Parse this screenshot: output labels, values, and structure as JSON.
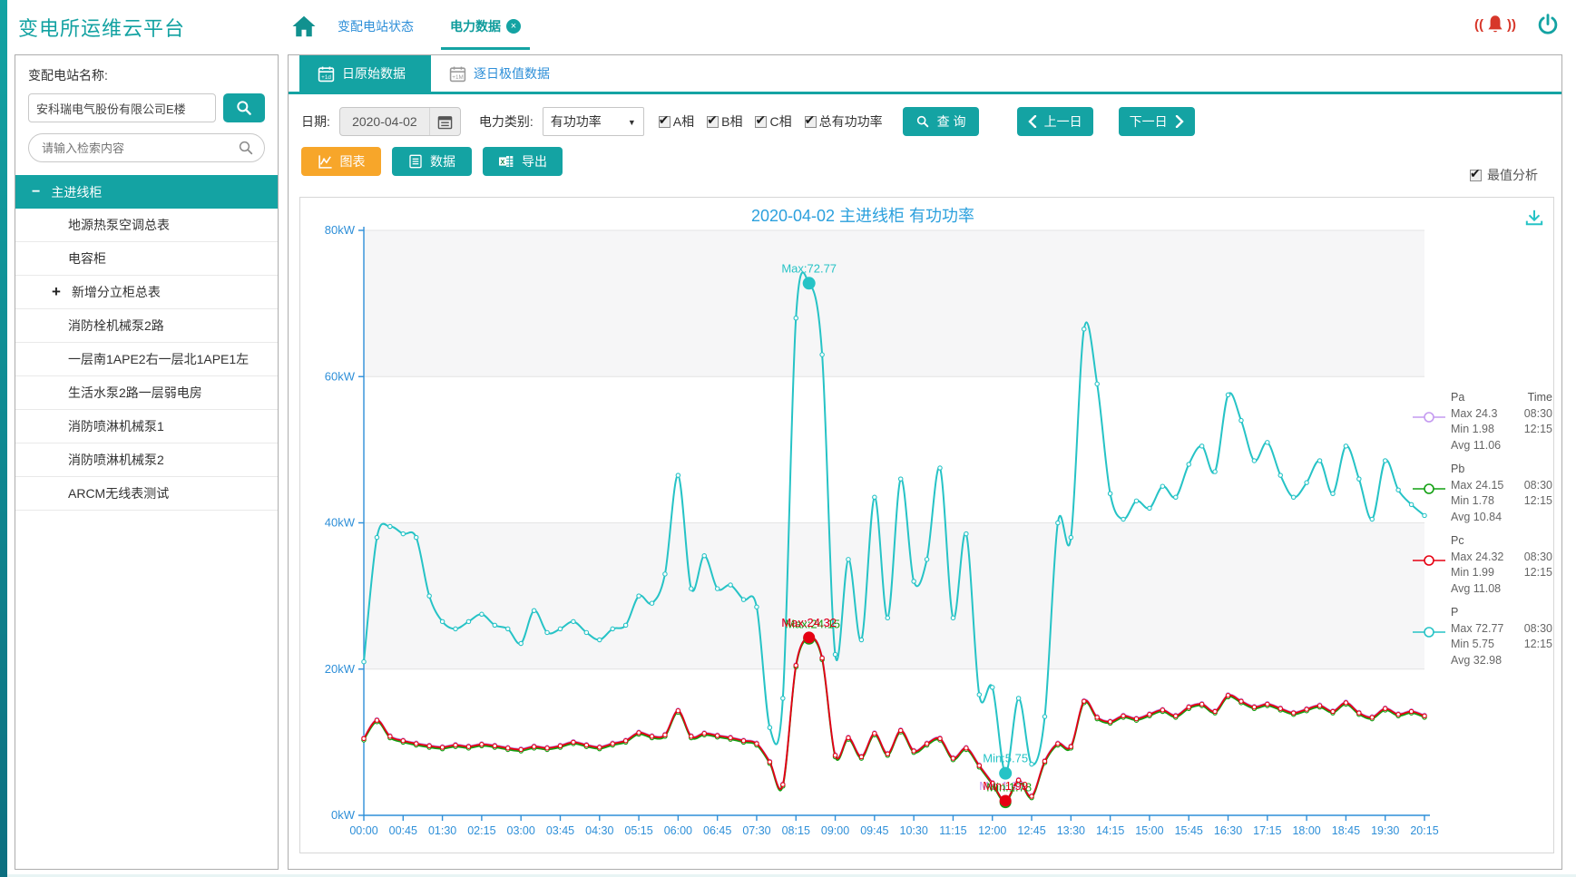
{
  "app": {
    "title": "变电所运维云平台"
  },
  "header": {
    "nav_station_status": "变配电站状态",
    "nav_power_data": "电力数据",
    "close_glyph": "×"
  },
  "sidebar": {
    "station_label": "变配电站名称:",
    "station_value": "安科瑞电气股份有限公司E楼",
    "search_placeholder": "请输入检索内容",
    "tree": [
      {
        "label": "主进线柜",
        "type": "root",
        "toggle": "−"
      },
      {
        "label": "地源热泵空调总表",
        "type": "leaf"
      },
      {
        "label": "电容柜",
        "type": "leaf"
      },
      {
        "label": "新增分立柜总表",
        "type": "expandable",
        "toggle": "+"
      },
      {
        "label": "消防栓机械泵2路",
        "type": "leaf"
      },
      {
        "label": "一层南1APE2右一层北1APE1左",
        "type": "leaf"
      },
      {
        "label": "生活水泵2路一层弱电房",
        "type": "leaf"
      },
      {
        "label": "消防喷淋机械泵1",
        "type": "leaf"
      },
      {
        "label": "消防喷淋机械泵2",
        "type": "leaf"
      },
      {
        "label": "ARCM无线表测试",
        "type": "leaf"
      }
    ]
  },
  "tabs": {
    "daily_raw": "日原始数据",
    "daily_extreme": "逐日极值数据",
    "icon_1d": "+1d",
    "icon_1m": "+1M"
  },
  "filters": {
    "date_label": "日期:",
    "date_value": "2020-04-02",
    "type_label": "电力类别:",
    "type_value": "有功功率",
    "checkboxes": [
      {
        "label": "A相",
        "checked": true
      },
      {
        "label": "B相",
        "checked": true
      },
      {
        "label": "C相",
        "checked": true
      },
      {
        "label": "总有功功率",
        "checked": true
      }
    ],
    "query_label": "查 询",
    "prev_label": "上一日",
    "next_label": "下一日"
  },
  "actions": {
    "chart_label": "图表",
    "data_label": "数据",
    "export_label": "导出",
    "peak_label": "最值分析",
    "peak_checked": true
  },
  "chart_data": {
    "type": "line",
    "title": "2020-04-02  主进线柜  有功功率",
    "ylim": [
      0,
      80
    ],
    "yticks": [
      0,
      20,
      40,
      60,
      80
    ],
    "ytick_labels": [
      "0kW",
      "20kW",
      "40kW",
      "60kW",
      "80kW"
    ],
    "grid": true,
    "split_bands": [
      [
        60,
        80
      ],
      [
        20,
        40
      ]
    ],
    "legend_position": "right",
    "legend_time_header": "Time",
    "xtick_every": 3,
    "x": [
      "00:00",
      "00:15",
      "00:30",
      "00:45",
      "01:00",
      "01:15",
      "01:30",
      "01:45",
      "02:00",
      "02:15",
      "02:30",
      "02:45",
      "03:00",
      "03:15",
      "03:30",
      "03:45",
      "04:00",
      "04:15",
      "04:30",
      "04:45",
      "05:00",
      "05:15",
      "05:30",
      "05:45",
      "06:00",
      "06:15",
      "06:30",
      "06:45",
      "07:00",
      "07:15",
      "07:30",
      "07:45",
      "08:00",
      "08:15",
      "08:30",
      "08:45",
      "09:00",
      "09:15",
      "09:30",
      "09:45",
      "10:00",
      "10:15",
      "10:30",
      "10:45",
      "11:00",
      "11:15",
      "11:30",
      "11:45",
      "12:00",
      "12:15",
      "12:30",
      "12:45",
      "13:00",
      "13:15",
      "13:30",
      "13:45",
      "14:00",
      "14:15",
      "14:30",
      "14:45",
      "15:00",
      "15:15",
      "15:30",
      "15:45",
      "16:00",
      "16:15",
      "16:30",
      "16:45",
      "17:00",
      "17:15",
      "17:30",
      "17:45",
      "18:00",
      "18:15",
      "18:30",
      "18:45",
      "19:00",
      "19:15",
      "19:30",
      "19:45",
      "20:00",
      "20:15"
    ],
    "series": [
      {
        "name": "Pa",
        "color": "#c49af0",
        "max": 24.3,
        "max_time": "08:30",
        "min": 1.98,
        "min_time": "12:15",
        "avg": 11.06,
        "max_label": "Max:24.3",
        "min_label": "Min:1.98",
        "max_idx": 34,
        "min_idx": 49,
        "values": [
          10.6,
          13.1,
          10.9,
          10.3,
          9.9,
          9.6,
          9.4,
          9.7,
          9.5,
          9.8,
          9.6,
          9.3,
          9.1,
          9.5,
          9.3,
          9.6,
          10.1,
          9.7,
          9.4,
          9.9,
          10.3,
          11.4,
          10.9,
          11.1,
          14.4,
          10.9,
          11.3,
          11.0,
          10.7,
          10.3,
          9.9,
          7.4,
          4.3,
          20.6,
          24.3,
          21.6,
          8.3,
          10.7,
          8.1,
          11.3,
          8.5,
          11.7,
          8.9,
          9.9,
          10.6,
          7.9,
          9.3,
          6.9,
          4.5,
          1.98,
          4.9,
          2.7,
          7.5,
          9.9,
          9.5,
          15.7,
          13.5,
          12.9,
          13.7,
          13.3,
          13.9,
          14.5,
          13.7,
          14.9,
          15.3,
          14.3,
          16.5,
          15.7,
          14.9,
          15.3,
          14.7,
          14.1,
          14.6,
          15.1,
          14.3,
          15.5,
          14.1,
          13.5,
          14.7,
          13.9,
          14.3,
          13.7
        ]
      },
      {
        "name": "Pb",
        "color": "#12a012",
        "max": 24.15,
        "max_time": "08:30",
        "min": 1.78,
        "min_time": "12:15",
        "avg": 10.84,
        "max_label": "Max:24.15",
        "min_label": "Min:1.78",
        "max_idx": 34,
        "min_idx": 49,
        "values": [
          10.3,
          12.8,
          10.6,
          10.0,
          9.6,
          9.3,
          9.1,
          9.4,
          9.2,
          9.5,
          9.3,
          9.0,
          8.8,
          9.2,
          9.0,
          9.3,
          9.8,
          9.4,
          9.1,
          9.6,
          10.0,
          11.1,
          10.6,
          10.8,
          14.1,
          10.6,
          11.0,
          10.7,
          10.4,
          10.0,
          9.6,
          7.1,
          4.0,
          20.3,
          24.15,
          21.3,
          8.0,
          10.4,
          7.8,
          11.0,
          8.2,
          11.4,
          8.6,
          9.6,
          10.3,
          7.6,
          9.0,
          6.6,
          4.2,
          1.78,
          4.6,
          2.4,
          7.2,
          9.6,
          9.2,
          15.4,
          13.2,
          12.6,
          13.4,
          13.0,
          13.6,
          14.2,
          13.4,
          14.6,
          15.0,
          14.0,
          16.2,
          15.4,
          14.6,
          15.0,
          14.4,
          13.8,
          14.3,
          14.8,
          14.0,
          15.2,
          13.8,
          13.2,
          14.4,
          13.6,
          14.0,
          13.4
        ]
      },
      {
        "name": "Pc",
        "color": "#e60012",
        "max": 24.32,
        "max_time": "08:30",
        "min": 1.99,
        "min_time": "12:15",
        "avg": 11.08,
        "max_label": "Max:24.32",
        "min_label": "Min:1.99",
        "max_idx": 34,
        "min_idx": 49,
        "values": [
          10.5,
          13.0,
          10.8,
          10.2,
          9.8,
          9.5,
          9.3,
          9.6,
          9.4,
          9.7,
          9.5,
          9.2,
          9.0,
          9.4,
          9.2,
          9.5,
          10.0,
          9.6,
          9.3,
          9.8,
          10.2,
          11.3,
          10.8,
          11.0,
          14.3,
          10.8,
          11.2,
          10.9,
          10.6,
          10.2,
          9.8,
          7.3,
          4.2,
          20.5,
          24.32,
          21.5,
          8.2,
          10.6,
          8.0,
          11.2,
          8.4,
          11.6,
          8.8,
          9.8,
          10.5,
          7.8,
          9.2,
          6.8,
          4.4,
          1.99,
          4.8,
          2.6,
          7.4,
          9.8,
          9.4,
          15.6,
          13.4,
          12.8,
          13.6,
          13.2,
          13.8,
          14.4,
          13.6,
          14.8,
          15.2,
          14.2,
          16.4,
          15.6,
          14.8,
          15.2,
          14.6,
          14.0,
          14.5,
          15.0,
          14.2,
          15.4,
          14.0,
          13.4,
          14.6,
          13.8,
          14.2,
          13.6
        ]
      },
      {
        "name": "P",
        "color": "#26c3c6",
        "max": 72.77,
        "max_time": "08:30",
        "min": 5.75,
        "min_time": "12:15",
        "avg": 32.98,
        "max_label": "Max:72.77",
        "min_label": "Min:5.75",
        "max_idx": 34,
        "min_idx": 49,
        "values": [
          21,
          38,
          39.5,
          38.5,
          38,
          30,
          26.5,
          25.5,
          26.5,
          27.5,
          26,
          25.5,
          23.5,
          28,
          25,
          25.5,
          26.5,
          25,
          24,
          25.5,
          26,
          30,
          29,
          33,
          46.5,
          31,
          35.5,
          31,
          31.5,
          29.5,
          28.5,
          12,
          16,
          68,
          72.77,
          63,
          22,
          35,
          24,
          43.5,
          27,
          46,
          32,
          35,
          47.5,
          27,
          38.5,
          16.5,
          17.5,
          5.75,
          16,
          7,
          13.5,
          40,
          38,
          66.5,
          59,
          44,
          40.5,
          43,
          42,
          45,
          43.5,
          48,
          50.5,
          47,
          57.5,
          54,
          48.5,
          51,
          46.5,
          43.5,
          45.5,
          48.5,
          44,
          50.5,
          46,
          40.5,
          48.5,
          44.5,
          42.5,
          41
        ]
      }
    ]
  }
}
